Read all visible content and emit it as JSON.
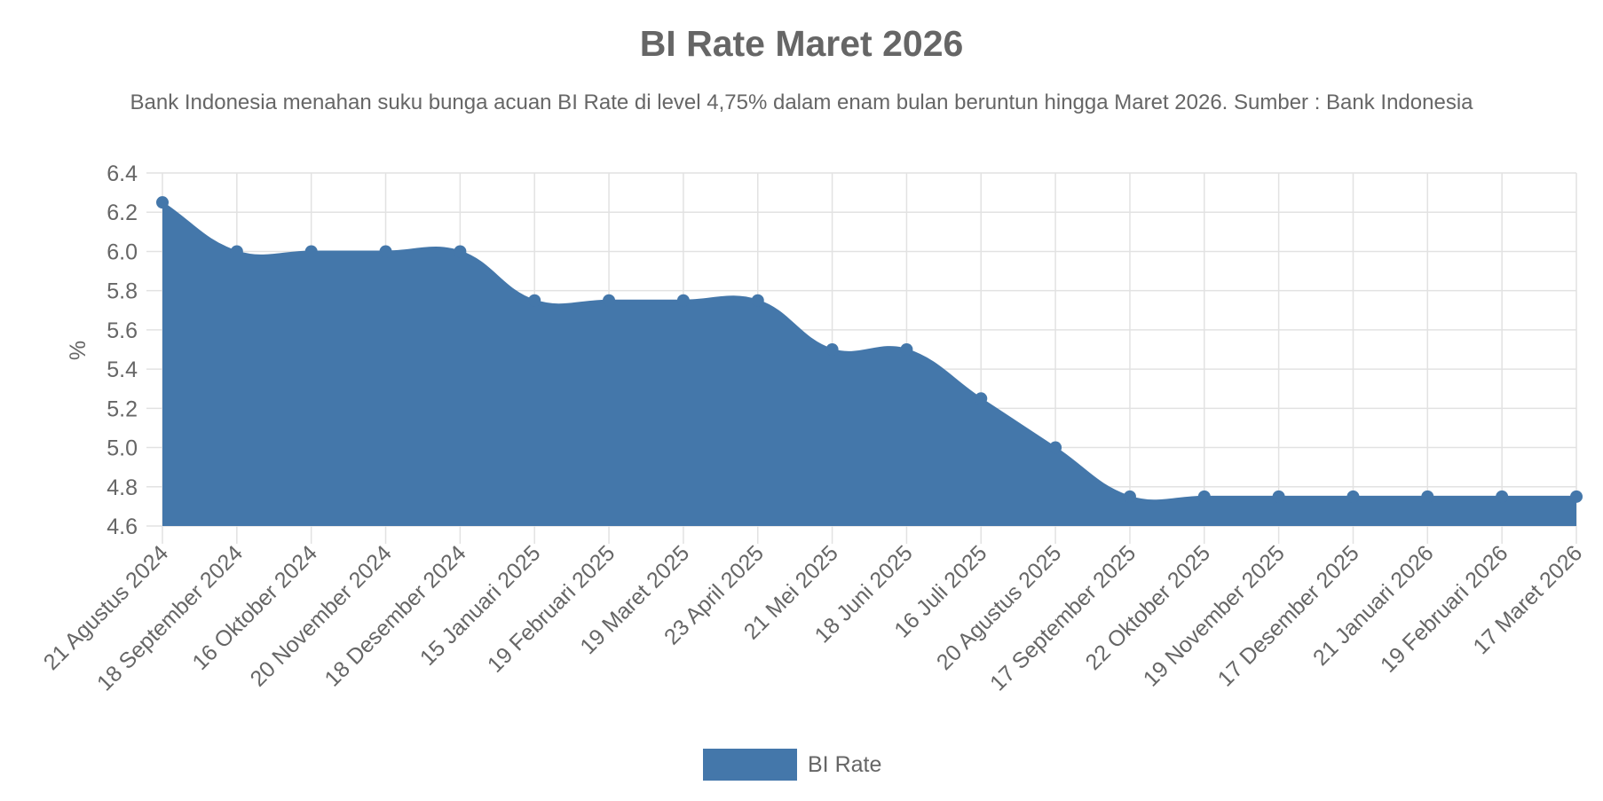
{
  "chart_data": {
    "type": "area",
    "title": "BI Rate Maret 2026",
    "subtitle": "Bank Indonesia menahan suku bunga acuan BI Rate di level 4,75% dalam enam bulan beruntun hingga Maret 2026. Sumber : Bank Indonesia",
    "xlabel": "",
    "ylabel": "%",
    "ylim": [
      4.6,
      6.4
    ],
    "yticks": [
      "6.4",
      "6.2",
      "6.0",
      "5.8",
      "5.6",
      "5.4",
      "5.2",
      "5.0",
      "4.8",
      "4.6"
    ],
    "grid": true,
    "legend_position": "bottom",
    "color": "#4477aa",
    "categories": [
      "21 Agustus 2024",
      "18 September 2024",
      "16 Oktober 2024",
      "20 November 2024",
      "18 Desember 2024",
      "15 Januari 2025",
      "19 Februari 2025",
      "19 Maret 2025",
      "23 April 2025",
      "21 Mei 2025",
      "18 Juni 2025",
      "16 Juli 2025",
      "20 Agustus 2025",
      "17 September 2025",
      "22 Oktober 2025",
      "19 November 2025",
      "17 Desember 2025",
      "21 Januari 2026",
      "19 Februari 2026",
      "17 Maret 2026"
    ],
    "series": [
      {
        "name": "BI Rate",
        "values": [
          6.25,
          6.0,
          6.0,
          6.0,
          6.0,
          5.75,
          5.75,
          5.75,
          5.75,
          5.5,
          5.5,
          5.25,
          5.0,
          4.75,
          4.75,
          4.75,
          4.75,
          4.75,
          4.75,
          4.75
        ]
      }
    ]
  }
}
